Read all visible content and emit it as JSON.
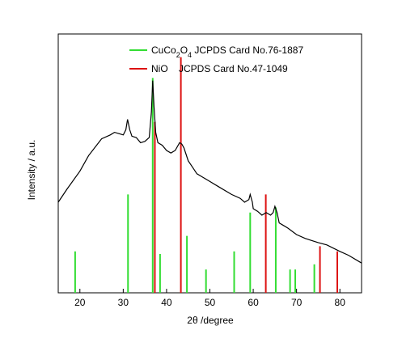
{
  "chart_data": {
    "type": "line",
    "xlabel": "2θ /degree",
    "ylabel": "Intensity / a.u.",
    "xlim": [
      15,
      85
    ],
    "xticks": [
      20,
      30,
      40,
      50,
      60,
      70,
      80
    ],
    "ylim": [
      0,
      100
    ],
    "curve": {
      "color": "#000000",
      "x": [
        15,
        17,
        20,
        22,
        25,
        27,
        28,
        29,
        30,
        30.6,
        31,
        31.5,
        32,
        33,
        34,
        35,
        36,
        36.5,
        36.8,
        37.1,
        37.5,
        38,
        39,
        40,
        41,
        42,
        43,
        43.5,
        44,
        45,
        46,
        47,
        48,
        50,
        52,
        55,
        57,
        58,
        59,
        59.3,
        59.8,
        60,
        61,
        62,
        63,
        64,
        64.6,
        65,
        65.5,
        66,
        67,
        68,
        70,
        72,
        75,
        77,
        80,
        82,
        85
      ],
      "values": [
        35,
        40,
        47,
        53,
        59.5,
        61,
        62,
        61.5,
        61,
        63,
        67,
        63,
        60.5,
        60,
        58,
        58.5,
        60,
        70,
        82,
        72,
        62,
        58,
        57,
        55,
        54,
        55,
        58,
        57.5,
        56,
        51,
        48.5,
        46,
        45,
        43,
        41,
        38,
        36.5,
        35,
        36,
        38,
        35,
        32.5,
        31.5,
        30,
        31,
        30,
        31,
        33.4,
        31,
        27,
        26,
        25,
        22.5,
        21,
        19.4,
        18.5,
        16,
        14.5,
        11.5
      ]
    },
    "series": [
      {
        "name": "CuCo2O4 JCPDS Card No.76-1887",
        "color": "#33dd33",
        "x": [
          18.9,
          31.1,
          36.8,
          38.5,
          44.7,
          49.1,
          55.6,
          59.3,
          65.2,
          68.5,
          69.7,
          74.1
        ],
        "values": [
          16,
          38,
          83,
          15,
          22,
          9,
          16,
          31,
          33,
          9,
          9,
          11
        ]
      },
      {
        "name": "NiO    JCPDS Card No.47-1049",
        "color": "#dd1111",
        "x": [
          37.3,
          43.3,
          62.9,
          75.4,
          79.4
        ],
        "values": [
          66,
          91,
          38,
          18,
          16
        ]
      }
    ]
  }
}
